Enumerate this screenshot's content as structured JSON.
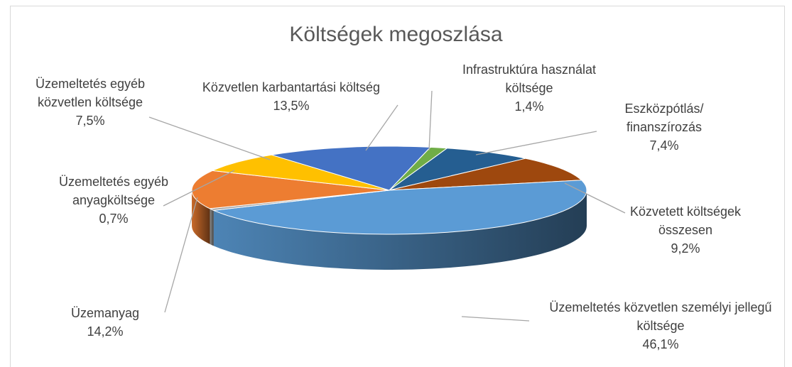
{
  "chart_data": {
    "type": "pie3d",
    "title": "Költségek megoszlása",
    "categories": [
      "Infrastruktúra használat költsége",
      "Eszközpótlás/ finanszírozás",
      "Közvetett költségek összesen",
      "Üzemeltetés közvetlen személyi jellegű költsége",
      "Üzemeltetés egyéb anyagköltsége",
      "Üzemanyag",
      "Üzemeltetés egyéb közvetlen költsége",
      "Közvetlen karbantartási költség"
    ],
    "values": [
      1.4,
      7.4,
      9.2,
      46.1,
      0.7,
      14.2,
      7.5,
      13.5
    ],
    "value_labels": [
      "1,4%",
      "7,4%",
      "9,2%",
      "46,1%",
      "0,7%",
      "14,2%",
      "7,5%",
      "13,5%"
    ],
    "colors": [
      "#70ad47",
      "#255e91",
      "#9e480e",
      "#5b9bd5",
      "#a5a5a5",
      "#ed7d31",
      "#ffc000",
      "#4472c4"
    ]
  }
}
